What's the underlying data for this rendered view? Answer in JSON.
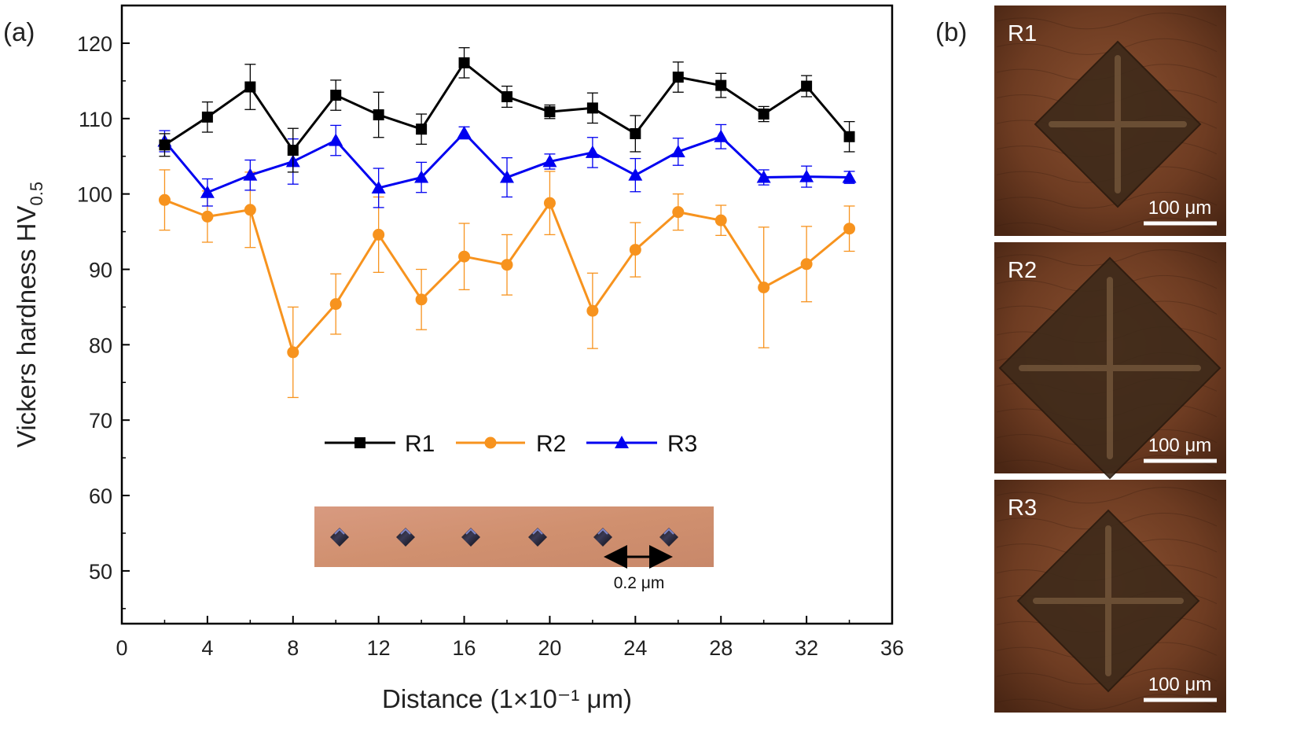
{
  "panel_labels": {
    "a": "(a)",
    "b": "(b)"
  },
  "chart_data": {
    "type": "line",
    "title": "",
    "xlabel": "Distance (1×10⁻¹ μm)",
    "ylabel_main": "Vickers hardness HV",
    "ylabel_sub": "0.5",
    "xlim": [
      0,
      36
    ],
    "ylim": [
      43,
      125
    ],
    "xticks": [
      0,
      4,
      8,
      12,
      16,
      20,
      24,
      28,
      32,
      36
    ],
    "yticks": [
      50,
      60,
      70,
      80,
      90,
      100,
      110,
      120
    ],
    "x": [
      2,
      4,
      6,
      8,
      10,
      12,
      14,
      16,
      18,
      20,
      22,
      24,
      26,
      28,
      30,
      32,
      34
    ],
    "legend_position": "middle-center",
    "series": [
      {
        "name": "R1",
        "color": "#000000",
        "marker": "square",
        "values": [
          106.5,
          110.2,
          114.2,
          105.8,
          113.1,
          110.5,
          108.6,
          117.4,
          112.9,
          110.9,
          111.4,
          108.0,
          115.5,
          114.4,
          110.6,
          114.3,
          107.6
        ],
        "errors": [
          1.5,
          2.0,
          3.0,
          2.9,
          2.0,
          3.0,
          2.0,
          2.0,
          1.4,
          0.9,
          2.0,
          2.4,
          2.0,
          1.6,
          1.0,
          1.4,
          2.0
        ]
      },
      {
        "name": "R2",
        "color": "#F7931E",
        "marker": "circle",
        "values": [
          99.2,
          97.0,
          97.9,
          79.0,
          85.4,
          94.6,
          86.0,
          91.7,
          90.6,
          98.8,
          84.5,
          92.6,
          97.6,
          96.5,
          87.6,
          90.7,
          95.4
        ],
        "errors": [
          4.0,
          3.4,
          5.0,
          6.0,
          4.0,
          5.0,
          4.0,
          4.4,
          4.0,
          4.2,
          5.0,
          3.6,
          2.4,
          2.0,
          8.0,
          5.0,
          3.0
        ]
      },
      {
        "name": "R3",
        "color": "#0000F0",
        "marker": "triangle",
        "values": [
          107.0,
          100.2,
          102.5,
          104.3,
          107.1,
          100.8,
          102.2,
          108.1,
          102.2,
          104.3,
          105.5,
          102.5,
          105.6,
          107.6,
          102.2,
          102.3,
          102.2
        ],
        "errors": [
          1.4,
          1.8,
          2.0,
          3.0,
          2.0,
          2.6,
          2.0,
          0.8,
          2.6,
          1.0,
          2.0,
          2.2,
          1.8,
          1.6,
          1.0,
          1.4,
          0.8
        ]
      }
    ]
  },
  "inset": {
    "scale_label": "0.2 μm"
  },
  "micrographs": [
    {
      "label": "R1",
      "scale_label": "100 μm"
    },
    {
      "label": "R2",
      "scale_label": "100 μm"
    },
    {
      "label": "R3",
      "scale_label": "100 μm"
    }
  ]
}
